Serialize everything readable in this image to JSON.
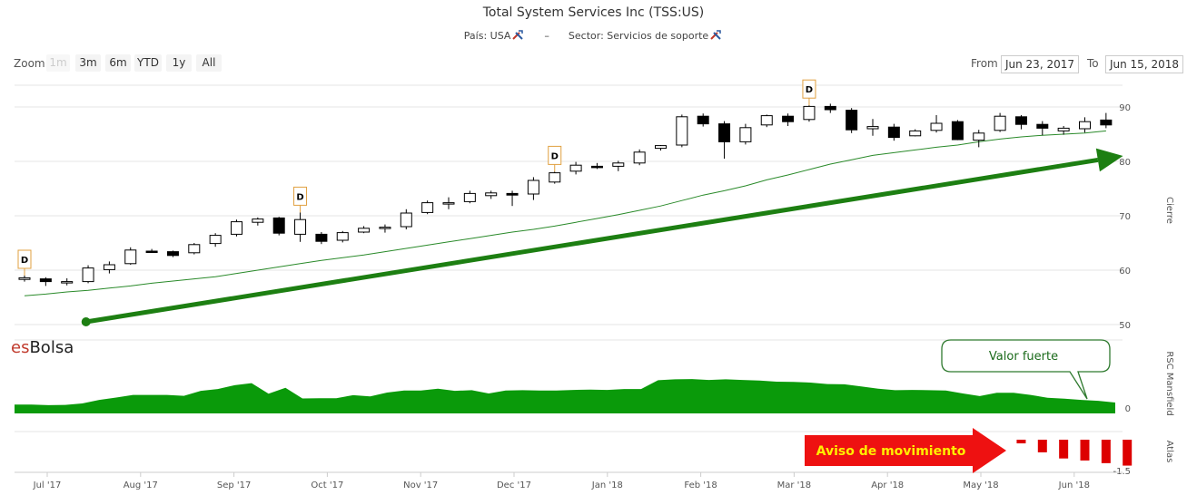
{
  "header": {
    "title": "Total System Services Inc (TSS:US)",
    "country_label": "País: USA",
    "separator": "–",
    "sector_label": "Sector: Servicios de soporte"
  },
  "range_selector": {
    "zoom_label": "Zoom",
    "buttons": [
      "1m",
      "3m",
      "6m",
      "YTD",
      "1y",
      "All"
    ],
    "disabled": "1m",
    "from_label": "From",
    "from_value": "Jun 23, 2017",
    "to_label": "To",
    "to_value": "Jun 15, 2018"
  },
  "brand": {
    "es": "es",
    "bolsa": "Bolsa"
  },
  "annotations": {
    "callout": "Valor fuerte",
    "warning": "Aviso de movimiento",
    "dividend_flag": "D"
  },
  "colors": {
    "candle_up": "#ffffff",
    "candle_down": "#000000",
    "ma_line": "#2a8a2a",
    "area": "#0a9a0a",
    "arrow": "#1d7f12",
    "atlas_bars": "#dd0000",
    "warning_bg": "#ee1111",
    "warning_text": "#ffee00"
  },
  "chart_data": {
    "type": "candlestick",
    "x_ticks": [
      "Jul '17",
      "Aug '17",
      "Sep '17",
      "Oct '17",
      "Nov '17",
      "Dec '17",
      "Jan '18",
      "Feb '18",
      "Mar '18",
      "Apr '18",
      "May '18",
      "Jun '18"
    ],
    "panels": [
      {
        "name": "Cierre",
        "y_ticks": [
          50,
          60,
          70,
          80,
          90
        ],
        "ylim": [
          48,
          94
        ],
        "candles": [
          {
            "o": 58.3,
            "h": 59.0,
            "l": 57.9,
            "c": 58.6
          },
          {
            "o": 58.4,
            "h": 58.7,
            "l": 57.1,
            "c": 57.9
          },
          {
            "o": 57.9,
            "h": 58.5,
            "l": 57.2,
            "c": 57.9
          },
          {
            "o": 57.9,
            "h": 60.9,
            "l": 57.6,
            "c": 60.4
          },
          {
            "o": 60.1,
            "h": 61.6,
            "l": 59.4,
            "c": 61.0
          },
          {
            "o": 61.2,
            "h": 64.2,
            "l": 61.0,
            "c": 63.7
          },
          {
            "o": 63.5,
            "h": 63.9,
            "l": 63.2,
            "c": 63.4
          },
          {
            "o": 63.4,
            "h": 63.6,
            "l": 62.4,
            "c": 62.7
          },
          {
            "o": 63.2,
            "h": 65.0,
            "l": 62.9,
            "c": 64.7
          },
          {
            "o": 64.9,
            "h": 66.8,
            "l": 64.3,
            "c": 66.4
          },
          {
            "o": 66.6,
            "h": 69.3,
            "l": 66.2,
            "c": 68.9
          },
          {
            "o": 68.8,
            "h": 69.7,
            "l": 68.2,
            "c": 69.4
          },
          {
            "o": 69.6,
            "h": 69.8,
            "l": 66.4,
            "c": 66.8
          },
          {
            "o": 66.6,
            "h": 70.6,
            "l": 65.2,
            "c": 69.3
          },
          {
            "o": 66.6,
            "h": 67.0,
            "l": 64.8,
            "c": 65.3
          },
          {
            "o": 65.5,
            "h": 67.2,
            "l": 65.1,
            "c": 66.9
          },
          {
            "o": 67.0,
            "h": 68.1,
            "l": 66.8,
            "c": 67.7
          },
          {
            "o": 67.9,
            "h": 68.4,
            "l": 66.9,
            "c": 67.9
          },
          {
            "o": 68.0,
            "h": 71.2,
            "l": 67.5,
            "c": 70.5
          },
          {
            "o": 70.6,
            "h": 72.8,
            "l": 70.3,
            "c": 72.4
          },
          {
            "o": 72.4,
            "h": 73.4,
            "l": 71.2,
            "c": 72.4
          },
          {
            "o": 72.6,
            "h": 74.6,
            "l": 72.3,
            "c": 74.1
          },
          {
            "o": 73.7,
            "h": 74.6,
            "l": 73.1,
            "c": 74.2
          },
          {
            "o": 74.1,
            "h": 74.6,
            "l": 71.8,
            "c": 73.8
          },
          {
            "o": 74.0,
            "h": 77.1,
            "l": 72.9,
            "c": 76.5
          },
          {
            "o": 76.2,
            "h": 78.1,
            "l": 75.9,
            "c": 77.9
          },
          {
            "o": 78.2,
            "h": 79.9,
            "l": 77.6,
            "c": 79.3
          },
          {
            "o": 79.1,
            "h": 79.7,
            "l": 78.6,
            "c": 79.0
          },
          {
            "o": 79.1,
            "h": 80.1,
            "l": 78.2,
            "c": 79.7
          },
          {
            "o": 79.7,
            "h": 82.2,
            "l": 79.3,
            "c": 81.7
          },
          {
            "o": 82.4,
            "h": 83.0,
            "l": 82.0,
            "c": 82.9
          },
          {
            "o": 83.0,
            "h": 88.6,
            "l": 82.6,
            "c": 88.2
          },
          {
            "o": 88.3,
            "h": 88.8,
            "l": 86.4,
            "c": 86.9
          },
          {
            "o": 86.9,
            "h": 87.4,
            "l": 80.5,
            "c": 83.6
          },
          {
            "o": 83.6,
            "h": 86.9,
            "l": 83.1,
            "c": 86.2
          },
          {
            "o": 86.7,
            "h": 88.6,
            "l": 86.3,
            "c": 88.4
          },
          {
            "o": 88.3,
            "h": 88.8,
            "l": 86.5,
            "c": 87.3
          },
          {
            "o": 87.7,
            "h": 90.3,
            "l": 87.3,
            "c": 90.1
          },
          {
            "o": 90.1,
            "h": 90.6,
            "l": 88.9,
            "c": 89.5
          },
          {
            "o": 89.4,
            "h": 89.8,
            "l": 85.2,
            "c": 85.8
          },
          {
            "o": 86.0,
            "h": 87.8,
            "l": 84.7,
            "c": 86.4
          },
          {
            "o": 86.3,
            "h": 86.9,
            "l": 83.8,
            "c": 84.4
          },
          {
            "o": 84.7,
            "h": 85.9,
            "l": 84.6,
            "c": 85.6
          },
          {
            "o": 85.7,
            "h": 88.5,
            "l": 85.3,
            "c": 87.0
          },
          {
            "o": 87.3,
            "h": 87.6,
            "l": 83.9,
            "c": 84.0
          },
          {
            "o": 83.9,
            "h": 85.8,
            "l": 82.6,
            "c": 85.2
          },
          {
            "o": 85.7,
            "h": 88.9,
            "l": 85.4,
            "c": 88.3
          },
          {
            "o": 88.2,
            "h": 88.5,
            "l": 85.9,
            "c": 86.8
          },
          {
            "o": 86.8,
            "h": 87.4,
            "l": 84.8,
            "c": 86.1
          },
          {
            "o": 85.6,
            "h": 86.5,
            "l": 84.9,
            "c": 86.1
          },
          {
            "o": 86.0,
            "h": 88.1,
            "l": 85.3,
            "c": 87.3
          },
          {
            "o": 87.6,
            "h": 88.9,
            "l": 86.1,
            "c": 86.7
          }
        ],
        "moving_average": [
          55.3,
          55.6,
          56.0,
          56.3,
          56.7,
          57.1,
          57.6,
          58.0,
          58.4,
          58.8,
          59.4,
          60.0,
          60.6,
          61.2,
          61.8,
          62.3,
          62.8,
          63.4,
          64.0,
          64.6,
          65.2,
          65.8,
          66.4,
          67.0,
          67.5,
          68.1,
          68.8,
          69.5,
          70.2,
          71.0,
          71.8,
          72.8,
          73.8,
          74.6,
          75.5,
          76.6,
          77.5,
          78.5,
          79.5,
          80.3,
          81.1,
          81.6,
          82.1,
          82.6,
          83.0,
          83.6,
          84.1,
          84.5,
          84.8,
          85.0,
          85.2,
          85.6
        ],
        "dividend_markers": [
          0,
          13,
          25,
          37
        ],
        "trend_arrow": {
          "from": {
            "i": 2.9,
            "y": 50.5
          },
          "to": {
            "i": 51.8,
            "y": 81.0
          }
        }
      },
      {
        "name": "RSC Mansfield",
        "y_ticks": [
          0
        ],
        "ylim": [
          0,
          25
        ],
        "values": [
          3.0,
          3.0,
          2.8,
          2.9,
          3.4,
          4.6,
          5.4,
          6.3,
          6.3,
          6.3,
          6.0,
          7.7,
          8.3,
          9.6,
          10.3,
          6.7,
          8.7,
          5.1,
          5.2,
          5.2,
          6.2,
          5.8,
          7.1,
          7.8,
          7.8,
          8.4,
          7.7,
          7.9,
          6.8,
          7.8,
          7.9,
          7.8,
          7.8,
          8.0,
          8.1,
          8.0,
          8.3,
          8.3,
          11.3,
          11.6,
          11.7,
          11.4,
          11.6,
          11.4,
          11.2,
          10.8,
          10.7,
          10.5,
          10.0,
          9.9,
          9.2,
          8.4,
          7.9,
          8.0,
          7.9,
          7.8,
          6.8,
          5.9,
          7.0,
          7.0,
          6.3,
          5.3,
          5.0,
          4.6,
          4.3,
          3.7
        ]
      },
      {
        "name": "Atlas",
        "y_ticks": [
          -1.5
        ],
        "ylim": [
          -1.6,
          0.4
        ],
        "bars_from_index": 47,
        "values": [
          -0.18,
          -0.62,
          -0.92,
          -1.02,
          -1.15,
          -1.27
        ]
      }
    ]
  }
}
